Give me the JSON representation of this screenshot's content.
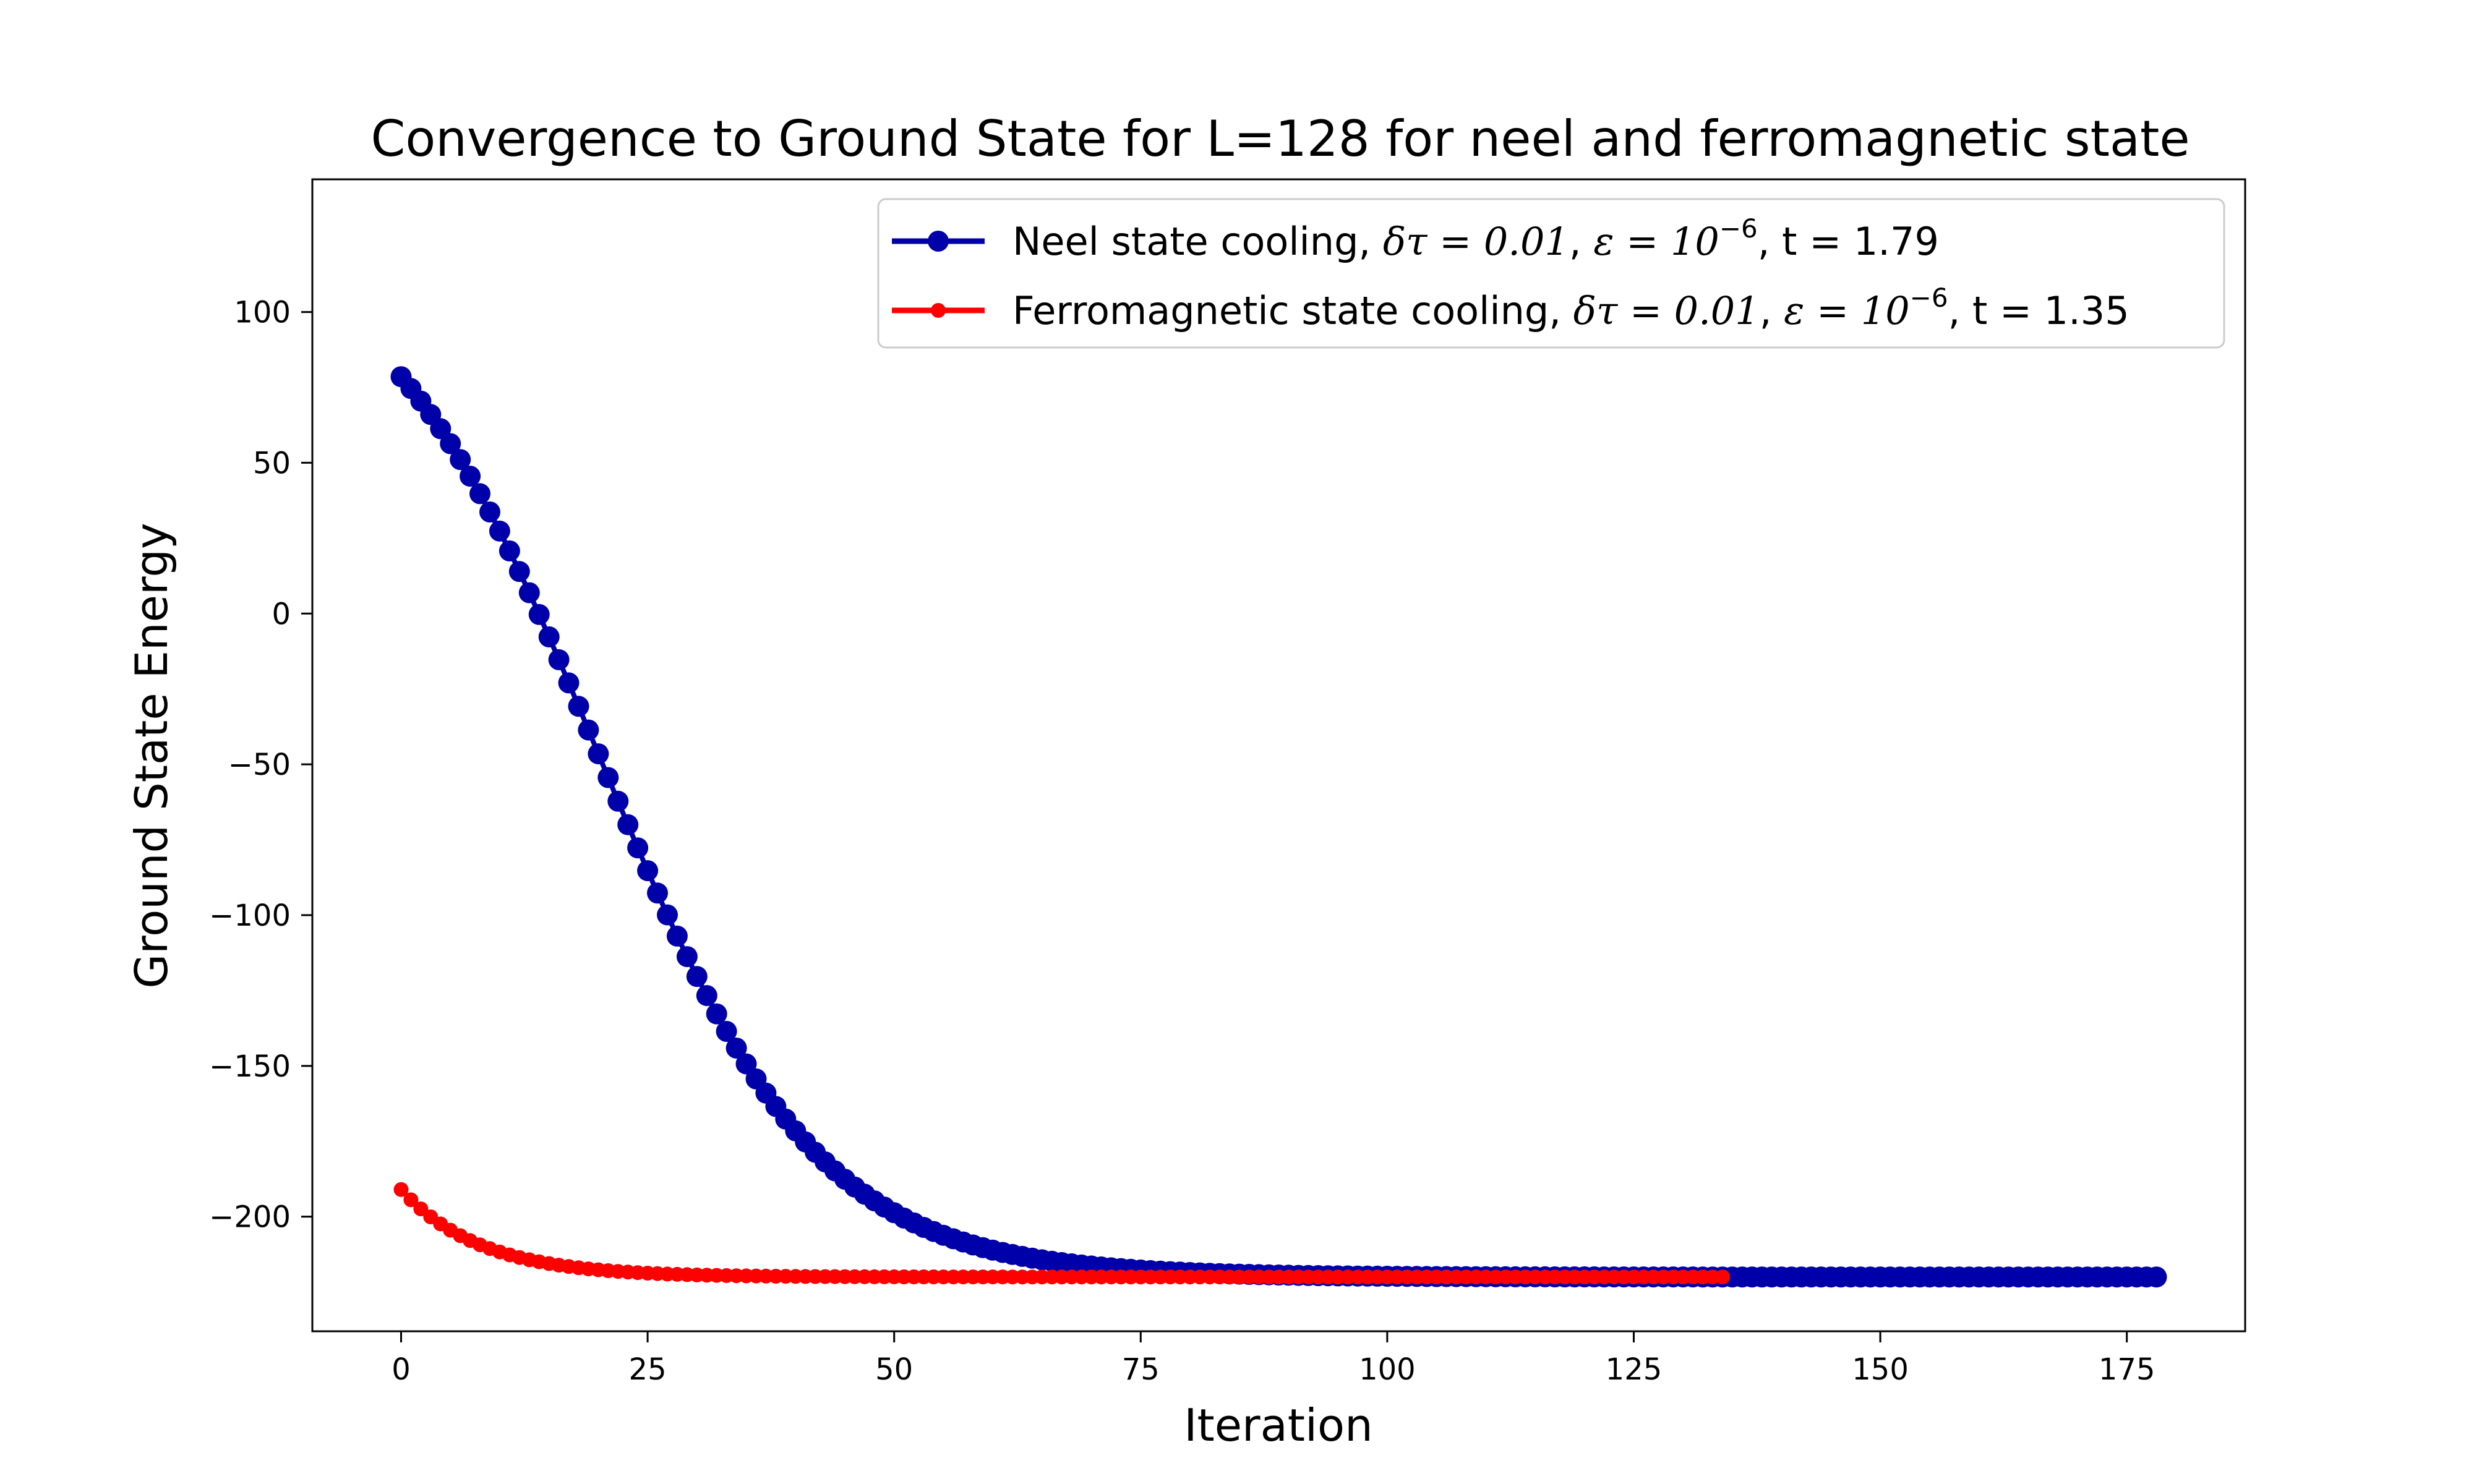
{
  "chart_data": {
    "type": "line",
    "title": "Convergence to Ground State for L=128 for neel and ferromagnetic state",
    "xlabel": "Iteration",
    "ylabel": "Ground State Energy",
    "xlim": [
      -9,
      187
    ],
    "ylim": [
      -238,
      144
    ],
    "xticks": [
      0,
      25,
      50,
      75,
      100,
      125,
      150,
      175
    ],
    "yticks": [
      100,
      50,
      0,
      -50,
      -100,
      -150,
      -200
    ],
    "ytick_labels": [
      "100",
      "50",
      "0",
      "−50",
      "−100",
      "−150",
      "−200"
    ],
    "grid": false,
    "legend_position": "top-right",
    "series": [
      {
        "name": "Neel state cooling, δτ = 0.01, ε = 10⁻⁶, t = 1.79",
        "legend": {
          "prefix": "Neel state cooling, ",
          "dt": "δτ = 0.01",
          "eps": "ε = 10",
          "exp": "−6",
          "suffix": ", t = 1.79"
        },
        "color": "#0000aa",
        "marker": "large-circle",
        "model": {
          "type": "logistic",
          "upper": 127,
          "lower": -220,
          "midpoint": 20,
          "scale": 11
        },
        "x_range": [
          0,
          178
        ]
      },
      {
        "name": "Ferromagnetic state cooling, δτ = 0.01, ε = 10⁻⁶, t = 1.35",
        "legend": {
          "prefix": "Ferromagnetic state cooling, ",
          "dt": "δτ = 0.01",
          "eps": "ε = 10",
          "exp": "−6",
          "suffix": ", t = 1.35"
        },
        "color": "#ff0000",
        "marker": "small-circle",
        "model": {
          "type": "exponential",
          "start": -191,
          "final": -220,
          "tau": 8
        },
        "x_range": [
          0,
          134
        ]
      }
    ]
  }
}
